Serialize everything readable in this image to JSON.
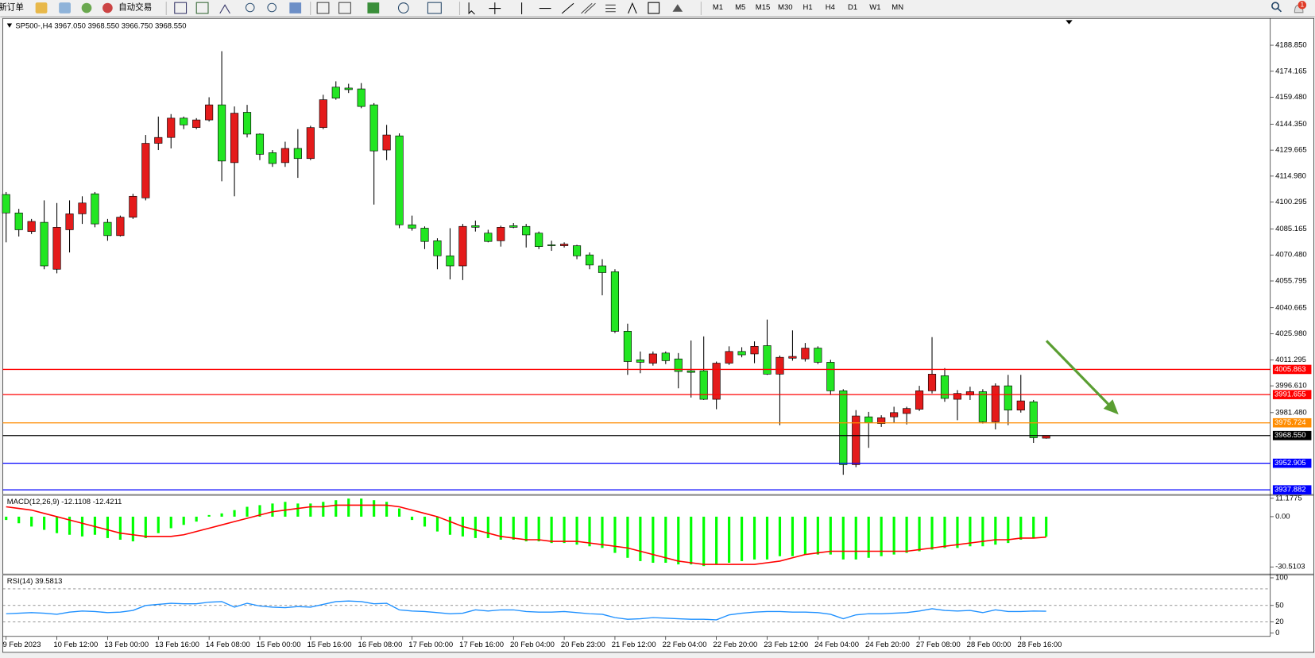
{
  "toolbar": {
    "new_order": "新订单",
    "auto_trading": "自动交易",
    "timeframes": [
      "M1",
      "M5",
      "M15",
      "M30",
      "H1",
      "H4",
      "D1",
      "W1",
      "MN"
    ],
    "notification_count": 1
  },
  "chart_data": {
    "type": "candlestick",
    "title": "SP500-,H4",
    "last_bar_labels": [
      "3967.050",
      "3968.550",
      "3966.750",
      "3968.550"
    ],
    "categories": [
      "9 Feb 2023",
      null,
      null,
      null,
      "10 Feb 12:00",
      null,
      null,
      null,
      "13 Feb 00:00",
      null,
      null,
      null,
      "13 Feb 16:00",
      null,
      null,
      null,
      "14 Feb 08:00",
      null,
      null,
      null,
      "15 Feb 00:00",
      null,
      null,
      null,
      "15 Feb 16:00",
      null,
      null,
      null,
      "16 Feb 08:00",
      null,
      null,
      null,
      "17 Feb 00:00",
      null,
      null,
      null,
      "17 Feb 16:00",
      null,
      null,
      null,
      "20 Feb 04:00",
      null,
      null,
      null,
      "20 Feb 23:00",
      null,
      null,
      null,
      "21 Feb 12:00",
      null,
      null,
      null,
      "22 Feb 04:00",
      null,
      null,
      null,
      "22 Feb 20:00",
      null,
      null,
      null,
      "23 Feb 12:00",
      null,
      null,
      null,
      "24 Feb 04:00",
      null,
      null,
      null,
      "24 Feb 20:00",
      null,
      null,
      null,
      "27 Feb 08:00",
      null,
      null,
      null,
      "28 Feb 00:00",
      null,
      null,
      null,
      "28 Feb 16:00",
      null,
      null
    ],
    "open": [
      4104.6,
      4094.2,
      4083.7,
      4088.9,
      4062.4,
      4084.7,
      4093.7,
      4105.0,
      4088.9,
      4081.4,
      4091.8,
      4102.7,
      4133.5,
      4136.8,
      4147.7,
      4142.4,
      4146.7,
      4155.2,
      4122.6,
      4151.0,
      4138.7,
      4128.2,
      4122.6,
      4130.6,
      4124.9,
      4142.4,
      4165.2,
      4164.7,
      4164.2,
      4155.2,
      4129.7,
      4137.7,
      4087.5,
      4085.6,
      4078.5,
      4070.0,
      4064.3,
      4087.0,
      4082.8,
      4078.5,
      4087.0,
      4086.6,
      4082.8,
      4076.2,
      4075.7,
      4075.7,
      4070.5,
      4064.3,
      4061.0,
      4027.4,
      4011.3,
      4009.4,
      4015.1,
      4011.8,
      4005.1,
      4005.1,
      3989.0,
      4009.4,
      4016.0,
      4014.6,
      4019.3,
      4003.2,
      4012.2,
      4011.8,
      4017.9,
      4009.9,
      3993.8,
      3952.1,
      3979.1,
      3975.3,
      3979.1,
      3981.0,
      3983.4,
      3993.8,
      4002.3,
      3989.0,
      3991.4,
      3993.3,
      3976.3,
      3996.6,
      3982.9,
      3987.6,
      3967.05
    ],
    "high": [
      4106.0,
      4096.5,
      4090.8,
      4101.3,
      4099.8,
      4101.3,
      4103.6,
      4106.0,
      4090.8,
      4092.7,
      4105.0,
      4138.2,
      4148.6,
      4150.0,
      4148.6,
      4147.7,
      4159.5,
      4185.5,
      4154.3,
      4155.2,
      4139.1,
      4129.7,
      4134.4,
      4141.5,
      4143.4,
      4160.9,
      4168.5,
      4167.1,
      4167.5,
      4156.2,
      4143.9,
      4139.1,
      4092.7,
      4086.6,
      4079.9,
      4085.6,
      4088.0,
      4089.9,
      4084.7,
      4087.0,
      4088.5,
      4088.0,
      4083.7,
      4078.5,
      4077.6,
      4076.2,
      4071.9,
      4068.1,
      4062.4,
      4031.7,
      4016.0,
      4016.0,
      4016.0,
      4015.1,
      4022.2,
      4024.5,
      4010.3,
      4018.9,
      4018.4,
      4021.7,
      4034.0,
      4013.7,
      4027.9,
      4020.8,
      4018.9,
      4011.3,
      3994.7,
      3982.9,
      3981.9,
      3980.0,
      3984.8,
      3984.8,
      3996.6,
      4024.1,
      4006.6,
      3994.2,
      3996.1,
      3994.7,
      3998.0,
      4002.8,
      4002.8,
      3988.6,
      3968.55
    ],
    "low": [
      4077.6,
      4080.9,
      4082.3,
      4062.4,
      4060.1,
      4071.9,
      4088.0,
      4086.1,
      4078.5,
      4080.9,
      4090.8,
      4101.3,
      4129.7,
      4130.6,
      4141.5,
      4141.5,
      4145.8,
      4112.1,
      4103.6,
      4136.8,
      4124.0,
      4120.2,
      4120.2,
      4114.0,
      4124.0,
      4141.5,
      4158.1,
      4161.9,
      4153.3,
      4098.9,
      4124.0,
      4085.6,
      4084.2,
      4073.8,
      4062.4,
      4056.7,
      4056.3,
      4083.7,
      4077.6,
      4075.2,
      4085.6,
      4074.7,
      4073.8,
      4072.8,
      4074.7,
      4068.1,
      4062.4,
      4047.7,
      4026.4,
      4002.8,
      4003.7,
      4008.0,
      4008.9,
      3995.2,
      3990.0,
      3988.6,
      3983.4,
      4008.4,
      4012.7,
      4009.4,
      4002.8,
      3974.4,
      4010.8,
      4010.3,
      4008.9,
      3991.4,
      3946.4,
      3950.7,
      3961.6,
      3973.4,
      3975.8,
      3974.8,
      3982.4,
      3992.3,
      3987.6,
      3977.2,
      3988.6,
      3975.3,
      3972.0,
      3974.4,
      3981.5,
      3964.4,
      3966.75
    ],
    "close": [
      4094.2,
      4084.7,
      4089.4,
      4064.3,
      4086.1,
      4093.7,
      4099.8,
      4088.0,
      4081.4,
      4091.8,
      4103.6,
      4133.5,
      4136.8,
      4147.7,
      4143.9,
      4146.7,
      4155.2,
      4123.5,
      4150.5,
      4138.7,
      4127.3,
      4122.1,
      4130.6,
      4124.9,
      4142.4,
      4158.1,
      4159.0,
      4163.8,
      4154.3,
      4129.2,
      4138.2,
      4087.5,
      4085.6,
      4078.1,
      4070.0,
      4064.3,
      4086.6,
      4086.1,
      4078.1,
      4086.1,
      4086.1,
      4081.8,
      4075.2,
      4075.7,
      4076.6,
      4070.0,
      4064.8,
      4060.5,
      4027.4,
      4010.3,
      4009.9,
      4014.6,
      4010.8,
      4004.7,
      4004.2,
      3989.0,
      4009.4,
      4016.0,
      4014.1,
      4018.9,
      4003.2,
      4012.7,
      4013.2,
      4017.9,
      4009.9,
      3993.8,
      3952.1,
      3979.6,
      3975.8,
      3978.6,
      3981.5,
      3983.8,
      3993.8,
      4003.2,
      3989.5,
      3992.3,
      3993.3,
      3976.3,
      3996.6,
      3982.9,
      3988.1,
      3967.3,
      3968.55
    ],
    "up_color": "#e41b1b",
    "down_color": "#22e622",
    "ylim": [
      3935.5,
      4203.05
    ],
    "yticks": [
      {
        "value": 4188.85,
        "label": "4188.850"
      },
      4174.165,
      {
        "value": 4159.48,
        "label": "4159.480"
      },
      {
        "value": 4144.35,
        "label": "4144.350"
      },
      4129.665,
      {
        "value": 4114.98,
        "label": "4114.980"
      },
      4100.295,
      4085.165,
      {
        "value": 4070.48,
        "label": "4070.480"
      },
      4055.795,
      4040.665,
      {
        "value": 4025.98,
        "label": "4025.980"
      },
      4011.295,
      {
        "value": 3996.61,
        "label": "3996.610"
      },
      {
        "value": 3981.48,
        "label": "3981.480"
      }
    ],
    "levels": [
      {
        "value": 4005.863,
        "color": "#ff0000"
      },
      {
        "value": 3991.655,
        "color": "#ff0000"
      },
      {
        "value": 3975.724,
        "color": "#ff8c00"
      },
      {
        "value": 3968.55,
        "label": "3968.550",
        "color": "#000000"
      },
      {
        "value": 3952.905,
        "color": "#0000ff"
      },
      {
        "value": 3937.882,
        "color": "#0000ff"
      }
    ],
    "indicators": [
      {
        "type": "macd",
        "label": "MACD(12,26,9)",
        "hist_color": "#00ff00",
        "signal_color": "#ff0000",
        "ylim": [
          -34.1,
          12.2
        ],
        "yticks": [
          11.1775,
          {
            "value": 0,
            "label": "0.00"
          },
          -30.5103
        ],
        "histogram": [
          -2,
          -4,
          -6,
          -8,
          -10,
          -11,
          -12,
          -11,
          -13,
          -14,
          -15,
          -13,
          -10,
          -7,
          -5,
          -3,
          1,
          2,
          4,
          6,
          7,
          8,
          9,
          8,
          8,
          9,
          10,
          11,
          11,
          10,
          9,
          5,
          -2,
          -6,
          -9,
          -11,
          -12,
          -13,
          -13,
          -14,
          -14,
          -15,
          -15,
          -16,
          -16,
          -17,
          -18,
          -19,
          -22,
          -25,
          -27,
          -28,
          -28,
          -29,
          -29,
          -30,
          -29,
          -28,
          -27,
          -26,
          -26,
          -24,
          -24,
          -23,
          -23,
          -23,
          -26,
          -26,
          -25,
          -24,
          -23,
          -22,
          -21,
          -20,
          -19,
          -19,
          -18,
          -18,
          -17,
          -16,
          -14,
          -13,
          -12.1108
        ],
        "signal": [
          6,
          5,
          4,
          2,
          0,
          -2,
          -4,
          -6,
          -8,
          -10,
          -11,
          -12,
          -12,
          -12,
          -11,
          -9,
          -7,
          -5,
          -3,
          -1,
          1,
          3,
          4,
          5,
          6,
          6,
          7,
          7,
          7,
          7,
          7,
          6,
          4,
          2,
          0,
          -3,
          -6,
          -8,
          -10,
          -12,
          -13,
          -14,
          -14,
          -15,
          -15,
          -15,
          -16,
          -17,
          -18,
          -19,
          -21,
          -23,
          -25,
          -27,
          -28,
          -29,
          -29,
          -29,
          -29,
          -29,
          -28,
          -27,
          -25,
          -23,
          -22,
          -21,
          -21,
          -21,
          -21,
          -21,
          -21,
          -21,
          -20,
          -19,
          -18,
          -17,
          -16,
          -15,
          -14,
          -14,
          -13,
          -13,
          -12.4211
        ]
      },
      {
        "type": "rsi",
        "label": "RSI(14)",
        "color": "#1e90ff",
        "ylim": [
          0,
          100
        ],
        "yticks": [
          100,
          50,
          20,
          0
        ],
        "levels": [
          80,
          50,
          20
        ],
        "values": [
          35,
          36,
          37,
          36,
          34,
          38,
          40,
          39,
          37,
          38,
          41,
          50,
          52,
          54,
          53,
          53,
          56,
          57,
          47,
          54,
          49,
          47,
          46,
          48,
          47,
          52,
          57,
          58,
          57,
          53,
          54,
          42,
          40,
          39,
          37,
          35,
          36,
          42,
          40,
          42,
          42,
          39,
          38,
          38,
          39,
          37,
          35,
          34,
          28,
          25,
          26,
          28,
          27,
          26,
          25,
          25,
          24,
          33,
          36,
          38,
          39,
          39,
          38,
          38,
          37,
          34,
          26,
          33,
          35,
          35,
          36,
          37,
          40,
          44,
          41,
          40,
          41,
          37,
          42,
          39,
          39,
          40,
          39.5813
        ]
      }
    ]
  }
}
